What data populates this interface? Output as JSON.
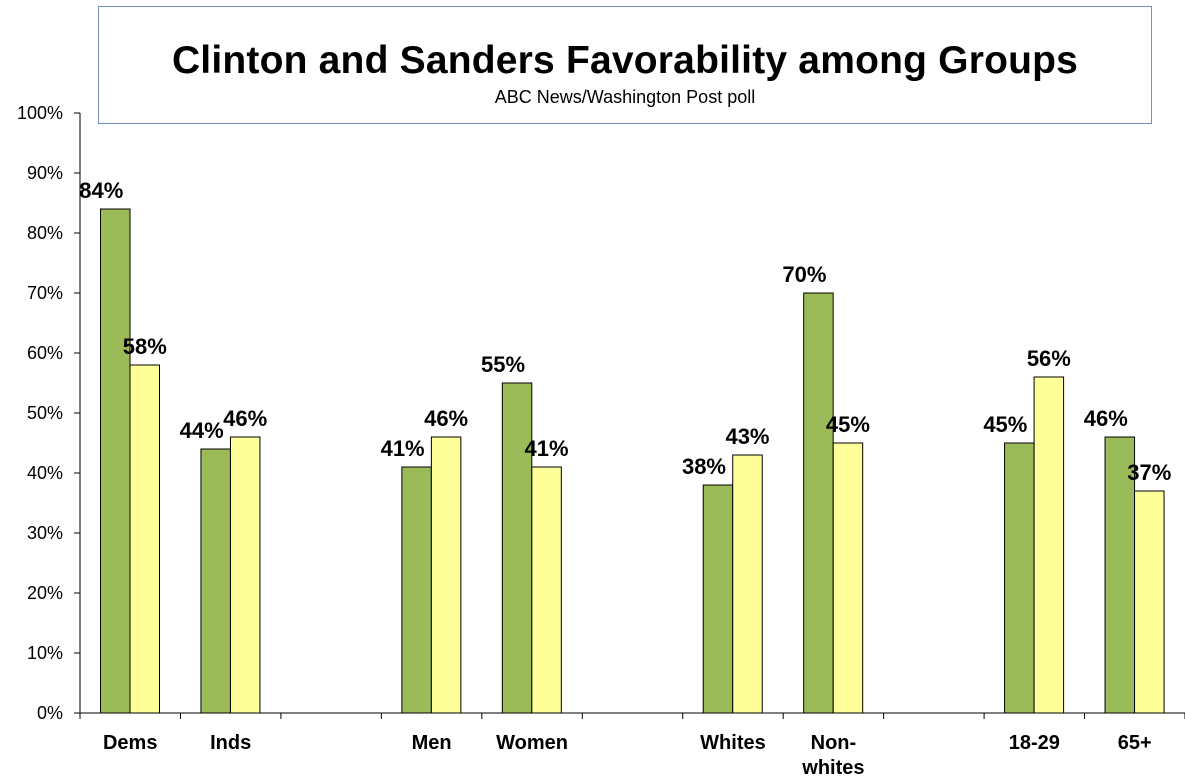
{
  "chart_data": {
    "type": "bar",
    "title": "Clinton and Sanders Favorability among Groups",
    "subtitle": "ABC News/Washington  Post poll",
    "xlabel": "",
    "ylabel": "",
    "ylim": [
      0,
      100
    ],
    "yticks": [
      0,
      10,
      20,
      30,
      40,
      50,
      60,
      70,
      80,
      90,
      100
    ],
    "ytick_labels": [
      "0%",
      "10%",
      "20%",
      "30%",
      "40%",
      "50%",
      "60%",
      "70%",
      "80%",
      "90%",
      "100%"
    ],
    "categories": [
      "Dems",
      "Inds",
      "",
      "Men",
      "Women",
      "",
      "Whites",
      "Non-whites",
      "",
      "18-29",
      "65+"
    ],
    "category_label_lines": [
      [
        "Dems"
      ],
      [
        "Inds"
      ],
      [],
      [
        "Men"
      ],
      [
        "Women"
      ],
      [],
      [
        "Whites"
      ],
      [
        "Non-",
        "whites"
      ],
      [],
      [
        "18-29"
      ],
      [
        "65+"
      ]
    ],
    "series": [
      {
        "values": [
          84,
          44,
          null,
          41,
          55,
          null,
          38,
          70,
          null,
          45,
          46
        ],
        "labels": [
          "84%",
          "44%",
          "",
          "41%",
          "55%",
          "",
          "38%",
          "70%",
          "",
          "45%",
          "46%"
        ]
      },
      {
        "values": [
          58,
          46,
          null,
          46,
          41,
          null,
          43,
          45,
          null,
          56,
          37
        ],
        "labels": [
          "58%",
          "46%",
          "",
          "46%",
          "41%",
          "",
          "43%",
          "45%",
          "",
          "56%",
          "37%"
        ]
      }
    ],
    "grid": false,
    "legend": "none",
    "colors": {
      "series1": "#9bbb59",
      "series2": "#ffff99",
      "bar_stroke": "#000000",
      "title_border": "#6f8fc6"
    }
  }
}
